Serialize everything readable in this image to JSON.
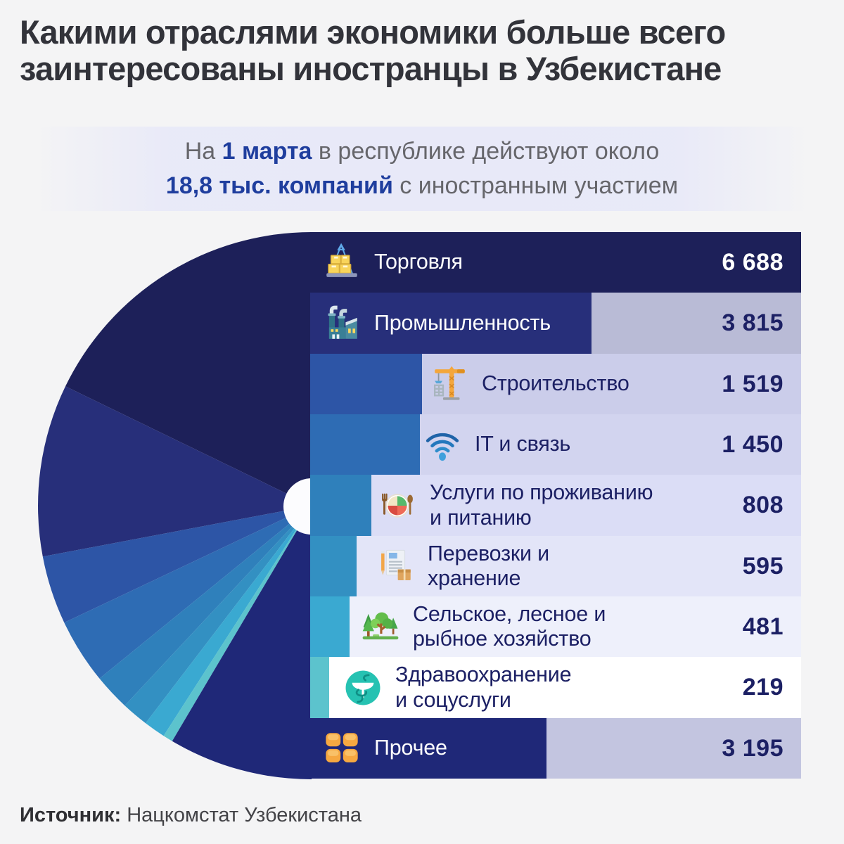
{
  "title": "Какими отраслями экономики больше всего\nзаинтересованы иностранцы в Узбекистане",
  "subtitle": {
    "line1_prefix": "На ",
    "line1_strong": "1 марта",
    "line1_suffix": " в республике действуют около",
    "line2_strong": "18,8 тыс. компаний",
    "line2_suffix": " с иностранным участием"
  },
  "source": {
    "label": "Источник:",
    "text": " Нацкомстат Узбекистана"
  },
  "colors": {
    "page_bg": "#f4f4f5",
    "value_navy": "#1c2064",
    "hole": "#fcfcfe",
    "subtitle_gray": "#66666b",
    "subtitle_blue": "#1f3e9e"
  },
  "rows": [
    {
      "label": "Торговля",
      "value": "6 688",
      "wedge_color": "#1d2059",
      "bar_color": null,
      "label_color": "#ffffff",
      "value_color": "#ffffff"
    },
    {
      "label": "Промышленность",
      "value": "3 815",
      "wedge_color": "#272f7a",
      "bar_color": "#b9bbd6",
      "label_color": "#ffffff",
      "value_color": "#1c2064"
    },
    {
      "label": "Строительство",
      "value": "1 519",
      "wedge_color": "#2d55a6",
      "bar_color": "#cbcdea",
      "label_color": "#1c2064",
      "value_color": "#1c2064"
    },
    {
      "label": "IT и связь",
      "value": "1 450",
      "wedge_color": "#2e6cb4",
      "bar_color": "#d2d4ef",
      "label_color": "#1c2064",
      "value_color": "#1c2064"
    },
    {
      "label": "Услуги по проживанию\nи питанию",
      "value": "808",
      "wedge_color": "#2f80bb",
      "bar_color": "#dbddf6",
      "label_color": "#1c2064",
      "value_color": "#1c2064"
    },
    {
      "label": "Перевозки и\nхранение",
      "value": "595",
      "wedge_color": "#3390c2",
      "bar_color": "#e3e5f8",
      "label_color": "#1c2064",
      "value_color": "#1c2064"
    },
    {
      "label": "Сельское, лесное и\nрыбное хозяйство",
      "value": "481",
      "wedge_color": "#3aa9d1",
      "bar_color": "#eef0fb",
      "label_color": "#1c2064",
      "value_color": "#1c2064"
    },
    {
      "label": "Здравоохранение\nи соцуслуги",
      "value": "219",
      "wedge_color": "#5cc3cd",
      "bar_color": "#ffffff",
      "label_color": "#1c2064",
      "value_color": "#1c2064"
    },
    {
      "label": "Прочее",
      "value": "3 195",
      "wedge_color": "#1f2878",
      "bar_color": "#c3c5e0",
      "label_color": "#ffffff",
      "value_color": "#1c2064"
    }
  ],
  "chart_data": {
    "type": "pie",
    "variant": "half-donut-fan",
    "title": "Какими отраслями экономики больше всего заинтересованы иностранцы в Узбекистане",
    "annotation": "На 1 марта в республике действуют около 18,8 тыс. компаний с иностранным участием",
    "categories": [
      "Торговля",
      "Промышленность",
      "Строительство",
      "IT и связь",
      "Услуги по проживанию и питанию",
      "Перевозки и хранение",
      "Сельское, лесное и рыбное хозяйство",
      "Здравоохранение и соцуслуги",
      "Прочее"
    ],
    "values": [
      6688,
      3815,
      1519,
      1450,
      808,
      595,
      481,
      219,
      3195
    ],
    "value_labels": [
      "6 688",
      "3 815",
      "1 519",
      "1 450",
      "808",
      "595",
      "481",
      "219",
      "3 195"
    ],
    "total": 18770,
    "colors": [
      "#1d2059",
      "#272f7a",
      "#2d55a6",
      "#2e6cb4",
      "#2f80bb",
      "#3390c2",
      "#3aa9d1",
      "#5cc3cd",
      "#1f2878"
    ],
    "start_angle_deg": 90,
    "sweep_deg": 180,
    "legend_position": "right-bars",
    "source": "Нацкомстат Узбекистана"
  }
}
